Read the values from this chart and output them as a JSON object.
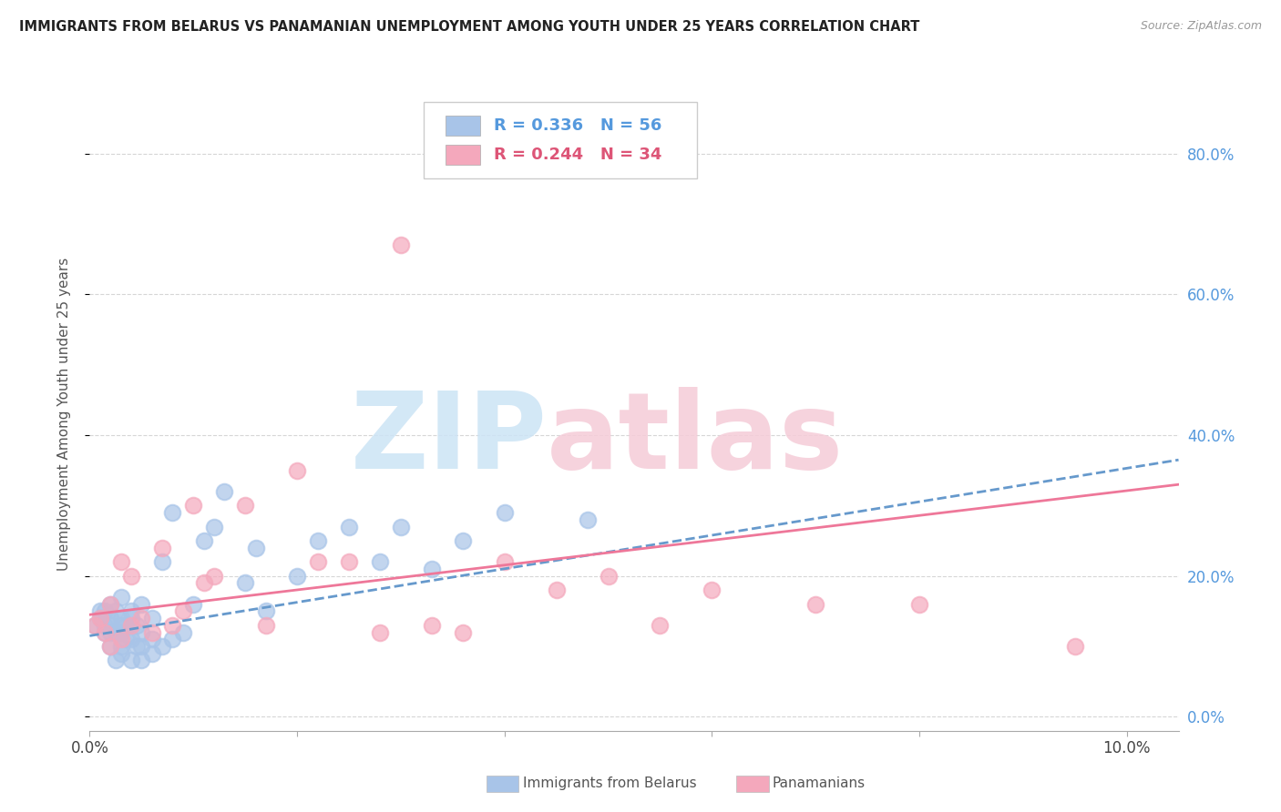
{
  "title": "IMMIGRANTS FROM BELARUS VS PANAMANIAN UNEMPLOYMENT AMONG YOUTH UNDER 25 YEARS CORRELATION CHART",
  "source": "Source: ZipAtlas.com",
  "ylabel": "Unemployment Among Youth under 25 years",
  "xlim": [
    0.0,
    0.105
  ],
  "ylim": [
    -0.02,
    0.88
  ],
  "xticks": [
    0.0,
    0.02,
    0.04,
    0.06,
    0.08,
    0.1
  ],
  "xticklabels": [
    "0.0%",
    "",
    "",
    "",
    "",
    "10.0%"
  ],
  "yticks_right": [
    0.0,
    0.2,
    0.4,
    0.6,
    0.8
  ],
  "ytick_right_labels": [
    "0.0%",
    "20.0%",
    "40.0%",
    "60.0%",
    "80.0%"
  ],
  "color_blue": "#a8c4e8",
  "color_pink": "#f4a8bc",
  "color_blue_text": "#5599dd",
  "color_pink_text": "#dd5577",
  "color_line_blue": "#6699cc",
  "color_line_pink": "#ee7799",
  "watermark_zip_color": "#cce4f5",
  "watermark_atlas_color": "#f5ccd8",
  "blue_scatter_x": [
    0.0005,
    0.001,
    0.001,
    0.0015,
    0.0015,
    0.0015,
    0.002,
    0.002,
    0.002,
    0.002,
    0.002,
    0.0025,
    0.0025,
    0.0025,
    0.003,
    0.003,
    0.003,
    0.003,
    0.003,
    0.003,
    0.0035,
    0.0035,
    0.004,
    0.004,
    0.004,
    0.004,
    0.0045,
    0.0045,
    0.005,
    0.005,
    0.005,
    0.005,
    0.006,
    0.006,
    0.006,
    0.007,
    0.007,
    0.008,
    0.008,
    0.009,
    0.01,
    0.011,
    0.012,
    0.013,
    0.015,
    0.016,
    0.017,
    0.02,
    0.022,
    0.025,
    0.028,
    0.03,
    0.033,
    0.036,
    0.04,
    0.048
  ],
  "blue_scatter_y": [
    0.13,
    0.14,
    0.15,
    0.12,
    0.13,
    0.15,
    0.1,
    0.12,
    0.13,
    0.14,
    0.16,
    0.08,
    0.12,
    0.15,
    0.09,
    0.1,
    0.12,
    0.13,
    0.14,
    0.17,
    0.11,
    0.13,
    0.08,
    0.11,
    0.14,
    0.15,
    0.1,
    0.13,
    0.08,
    0.1,
    0.12,
    0.16,
    0.09,
    0.11,
    0.14,
    0.1,
    0.22,
    0.11,
    0.29,
    0.12,
    0.16,
    0.25,
    0.27,
    0.32,
    0.19,
    0.24,
    0.15,
    0.2,
    0.25,
    0.27,
    0.22,
    0.27,
    0.21,
    0.25,
    0.29,
    0.28
  ],
  "pink_scatter_x": [
    0.0005,
    0.001,
    0.0015,
    0.002,
    0.002,
    0.003,
    0.003,
    0.004,
    0.004,
    0.005,
    0.006,
    0.007,
    0.008,
    0.009,
    0.01,
    0.011,
    0.012,
    0.015,
    0.017,
    0.02,
    0.022,
    0.025,
    0.028,
    0.03,
    0.033,
    0.036,
    0.04,
    0.045,
    0.05,
    0.055,
    0.06,
    0.07,
    0.08,
    0.095
  ],
  "pink_scatter_y": [
    0.13,
    0.14,
    0.12,
    0.1,
    0.16,
    0.11,
    0.22,
    0.13,
    0.2,
    0.14,
    0.12,
    0.24,
    0.13,
    0.15,
    0.3,
    0.19,
    0.2,
    0.3,
    0.13,
    0.35,
    0.22,
    0.22,
    0.12,
    0.67,
    0.13,
    0.12,
    0.22,
    0.18,
    0.2,
    0.13,
    0.18,
    0.16,
    0.16,
    0.1
  ],
  "blue_trend_x": [
    0.0,
    0.105
  ],
  "blue_trend_y": [
    0.115,
    0.365
  ],
  "pink_trend_x": [
    0.0,
    0.105
  ],
  "pink_trend_y": [
    0.145,
    0.33
  ]
}
